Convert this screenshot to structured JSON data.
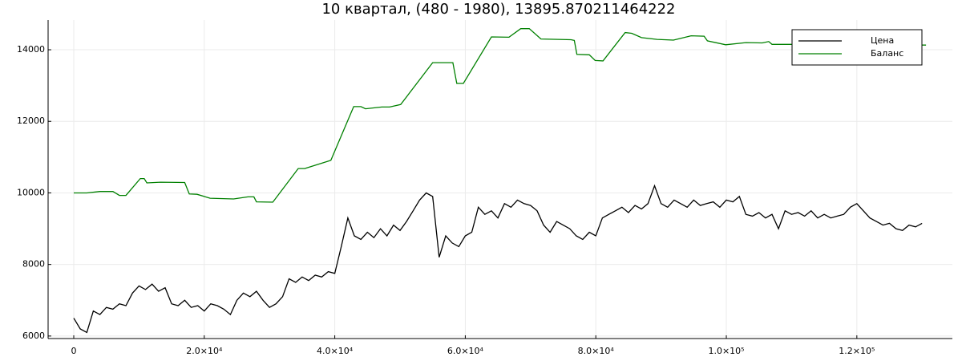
{
  "chart_data": {
    "type": "line",
    "title": "10 квартал, (480 - 1980), 13895.870211464222",
    "xlim": [
      -3930,
      134640
    ],
    "ylim": [
      5930,
      14830
    ],
    "xticks": [
      0,
      {
        "value": 20000,
        "label": "2.0×10⁴"
      },
      {
        "value": 40000,
        "label": "4.0×10⁴"
      },
      {
        "value": 60000,
        "label": "6.0×10⁴"
      },
      {
        "value": 80000,
        "label": "8.0×10⁴"
      },
      {
        "value": 100000,
        "label": "1.0×10⁵"
      },
      {
        "value": 120000,
        "label": "1.2×10⁵"
      }
    ],
    "yticks": [
      6000,
      8000,
      10000,
      12000,
      14000
    ],
    "grid": true,
    "legend": "top-right",
    "series": [
      {
        "name": "Цена",
        "color": "#000000",
        "x": [
          0,
          1000,
          2000,
          3000,
          4000,
          5000,
          6000,
          7000,
          8000,
          9000,
          10000,
          11000,
          12000,
          13000,
          14000,
          15000,
          16000,
          17000,
          18000,
          19000,
          20000,
          21000,
          22000,
          23000,
          24000,
          25000,
          26000,
          27000,
          28000,
          29000,
          30000,
          31000,
          32000,
          33000,
          34000,
          35000,
          36000,
          37000,
          38000,
          39000,
          40000,
          41000,
          42000,
          43000,
          44000,
          45000,
          46000,
          47000,
          48000,
          49000,
          50000,
          51000,
          52000,
          53000,
          54000,
          55000,
          56000,
          57000,
          58000,
          59000,
          60000,
          61000,
          62000,
          63000,
          64000,
          65000,
          66000,
          67000,
          68000,
          69000,
          70000,
          71000,
          72000,
          73000,
          74000,
          75000,
          76000,
          77000,
          78000,
          79000,
          80000,
          81000,
          82000,
          83000,
          84000,
          85000,
          86000,
          87000,
          88000,
          89000,
          90000,
          91000,
          92000,
          93000,
          94000,
          95000,
          96000,
          97000,
          98000,
          99000,
          100000,
          101000,
          102000,
          103000,
          104000,
          105000,
          106000,
          107000,
          108000,
          109000,
          110000,
          111000,
          112000,
          113000,
          114000,
          115000,
          116000,
          117000,
          118000,
          119000,
          120000,
          121000,
          122000,
          123000,
          124000,
          125000,
          126000,
          127000,
          128000,
          129000,
          130000
        ],
        "values": [
          6500,
          6200,
          6100,
          6700,
          6600,
          6800,
          6750,
          6900,
          6850,
          7200,
          7400,
          7300,
          7450,
          7250,
          7350,
          6900,
          6850,
          7000,
          6800,
          6850,
          6700,
          6900,
          6850,
          6750,
          6600,
          7000,
          7200,
          7100,
          7250,
          7000,
          6800,
          6900,
          7100,
          7600,
          7500,
          7650,
          7550,
          7700,
          7650,
          7800,
          7750,
          8500,
          9300,
          8800,
          8700,
          8900,
          8750,
          9000,
          8800,
          9100,
          8950,
          9200,
          9500,
          9800,
          10000,
          9900,
          8200,
          8800,
          8600,
          8500,
          8800,
          8900,
          9600,
          9400,
          9500,
          9300,
          9700,
          9600,
          9800,
          9700,
          9650,
          9500,
          9100,
          8900,
          9200,
          9100,
          9000,
          8800,
          8700,
          8900,
          8800,
          9300,
          9400,
          9500,
          9600,
          9450,
          9650,
          9550,
          9700,
          10200,
          9700,
          9600,
          9800,
          9700,
          9600,
          9800,
          9650,
          9700,
          9750,
          9600,
          9800,
          9750,
          9900,
          9400,
          9350,
          9450,
          9300,
          9400,
          9000,
          9500,
          9400,
          9450,
          9350,
          9500,
          9300,
          9400,
          9300,
          9350,
          9400,
          9600,
          9700,
          9500,
          9300,
          9200,
          9100,
          9150,
          9000,
          8950,
          9100,
          9050,
          9150
        ]
      },
      {
        "name": "Баланс",
        "color": "#008000",
        "x": [
          0,
          2000,
          4000,
          6000,
          7000,
          8000,
          10200,
          10800,
          11200,
          13300,
          17000,
          17700,
          18900,
          20900,
          24500,
          26700,
          27600,
          28000,
          30500,
          34400,
          35400,
          39400,
          42900,
          44000,
          44700,
          47200,
          48400,
          50100,
          55000,
          58100,
          58700,
          59700,
          64000,
          66700,
          68500,
          69800,
          71600,
          76200,
          76700,
          77100,
          79000,
          79900,
          81100,
          84500,
          85500,
          87000,
          89400,
          91900,
          94600,
          96600,
          97100,
          99900,
          103000,
          105500,
          106500,
          107000,
          110300,
          130600
        ],
        "values": [
          10000,
          10000,
          10040,
          10040,
          9930,
          9930,
          10400,
          10400,
          10280,
          10300,
          10290,
          9970,
          9960,
          9850,
          9830,
          9890,
          9890,
          9750,
          9740,
          10680,
          10680,
          10910,
          12410,
          12410,
          12350,
          12400,
          12400,
          12470,
          13640,
          13640,
          13060,
          13060,
          14360,
          14350,
          14590,
          14590,
          14300,
          14280,
          14260,
          13870,
          13860,
          13700,
          13690,
          14480,
          14460,
          14340,
          14290,
          14270,
          14390,
          14380,
          14250,
          14140,
          14200,
          14190,
          14230,
          14150,
          14150,
          14130
        ]
      }
    ]
  }
}
